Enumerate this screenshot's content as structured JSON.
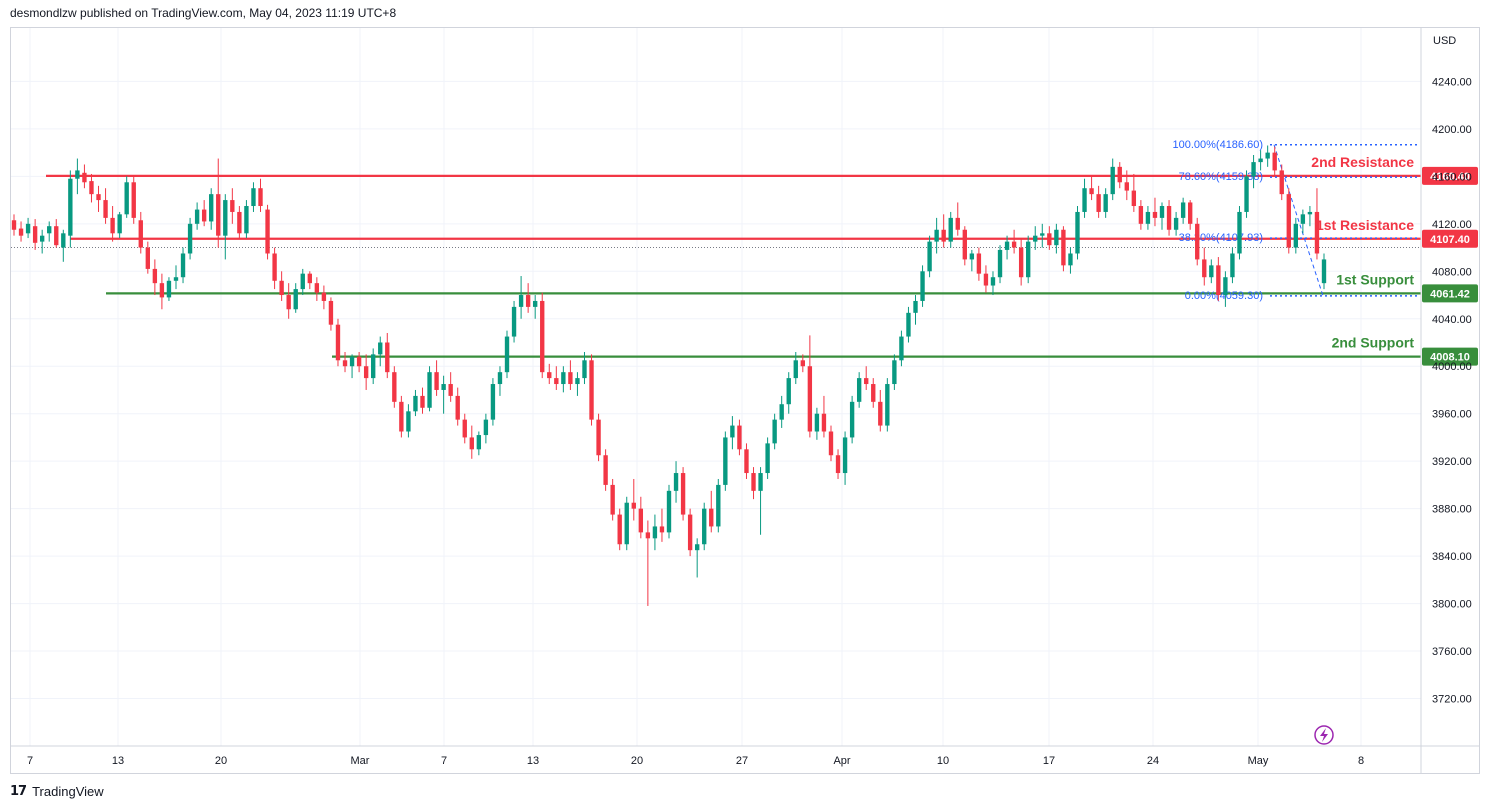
{
  "header": {
    "publisher_text": "desmondlzw published on TradingView.com, May 04, 2023 11:19 UTC+8"
  },
  "footer": {
    "logo_glyph": "17",
    "brand": "TradingView"
  },
  "colors": {
    "up": "#089981",
    "down": "#f23645",
    "resistance": "#f23645",
    "support": "#388e3c",
    "fib": "#2962ff",
    "grid": "#f0f3fa"
  },
  "icons": [
    "tradingview-logo-icon",
    "lightning-icon"
  ],
  "chart_data": {
    "type": "candlestick",
    "currency": "USD",
    "ylim": [
      3680,
      4285
    ],
    "y_ticks": [
      "4240.00",
      "4200.00",
      "4160.00",
      "4120.00",
      "4080.00",
      "4040.00",
      "4000.00",
      "3960.00",
      "3920.00",
      "3880.00",
      "3840.00",
      "3800.00",
      "3760.00",
      "3720.00"
    ],
    "x_ticks": [
      "7",
      "13",
      "20",
      "Mar",
      "7",
      "13",
      "20",
      "27",
      "Apr",
      "10",
      "17",
      "24",
      "May",
      "8"
    ],
    "horizontal_levels": [
      {
        "label": "2nd Resistance",
        "value": 4160.4,
        "value_label": "4160.40",
        "kind": "resistance"
      },
      {
        "label": "1st Resistance",
        "value": 4107.4,
        "value_label": "4107.40",
        "kind": "resistance"
      },
      {
        "label": "1st Support",
        "value": 4061.42,
        "value_label": "4061.42",
        "kind": "support"
      },
      {
        "label": "2nd Support",
        "value": 4008.1,
        "value_label": "4008.10",
        "kind": "support"
      }
    ],
    "fibonacci": [
      {
        "label": "100.00%(4186.60)",
        "value": 4186.6
      },
      {
        "label": "78.60%(4159.38)",
        "value": 4159.38
      },
      {
        "label": "38.20%(4107.93)",
        "value": 4107.93
      },
      {
        "label": "0.00%(4059.30)",
        "value": 4059.3
      }
    ],
    "last_price": 4100,
    "candles": [
      {
        "o": 4123,
        "h": 4128,
        "l": 4110,
        "c": 4115
      },
      {
        "o": 4116,
        "h": 4122,
        "l": 4105,
        "c": 4110
      },
      {
        "o": 4112,
        "h": 4125,
        "l": 4108,
        "c": 4120
      },
      {
        "o": 4118,
        "h": 4124,
        "l": 4098,
        "c": 4104
      },
      {
        "o": 4105,
        "h": 4115,
        "l": 4095,
        "c": 4110
      },
      {
        "o": 4112,
        "h": 4122,
        "l": 4105,
        "c": 4118
      },
      {
        "o": 4118,
        "h": 4124,
        "l": 4100,
        "c": 4102
      },
      {
        "o": 4100,
        "h": 4115,
        "l": 4088,
        "c": 4112
      },
      {
        "o": 4110,
        "h": 4165,
        "l": 4100,
        "c": 4158
      },
      {
        "o": 4158,
        "h": 4175,
        "l": 4145,
        "c": 4165
      },
      {
        "o": 4163,
        "h": 4170,
        "l": 4150,
        "c": 4155
      },
      {
        "o": 4156,
        "h": 4162,
        "l": 4138,
        "c": 4145
      },
      {
        "o": 4145,
        "h": 4152,
        "l": 4130,
        "c": 4140
      },
      {
        "o": 4140,
        "h": 4150,
        "l": 4120,
        "c": 4125
      },
      {
        "o": 4125,
        "h": 4135,
        "l": 4105,
        "c": 4112
      },
      {
        "o": 4112,
        "h": 4130,
        "l": 4108,
        "c": 4128
      },
      {
        "o": 4128,
        "h": 4160,
        "l": 4125,
        "c": 4155
      },
      {
        "o": 4155,
        "h": 4160,
        "l": 4120,
        "c": 4125
      },
      {
        "o": 4123,
        "h": 4130,
        "l": 4095,
        "c": 4100
      },
      {
        "o": 4100,
        "h": 4105,
        "l": 4078,
        "c": 4082
      },
      {
        "o": 4082,
        "h": 4090,
        "l": 4060,
        "c": 4070
      },
      {
        "o": 4070,
        "h": 4078,
        "l": 4048,
        "c": 4058
      },
      {
        "o": 4058,
        "h": 4075,
        "l": 4055,
        "c": 4072
      },
      {
        "o": 4072,
        "h": 4085,
        "l": 4065,
        "c": 4075
      },
      {
        "o": 4075,
        "h": 4100,
        "l": 4070,
        "c": 4095
      },
      {
        "o": 4095,
        "h": 4125,
        "l": 4090,
        "c": 4120
      },
      {
        "o": 4120,
        "h": 4138,
        "l": 4115,
        "c": 4132
      },
      {
        "o": 4132,
        "h": 4140,
        "l": 4118,
        "c": 4122
      },
      {
        "o": 4122,
        "h": 4150,
        "l": 4115,
        "c": 4145
      },
      {
        "o": 4145,
        "h": 4175,
        "l": 4100,
        "c": 4110
      },
      {
        "o": 4110,
        "h": 4145,
        "l": 4090,
        "c": 4140
      },
      {
        "o": 4140,
        "h": 4150,
        "l": 4120,
        "c": 4130
      },
      {
        "o": 4130,
        "h": 4135,
        "l": 4108,
        "c": 4112
      },
      {
        "o": 4112,
        "h": 4140,
        "l": 4108,
        "c": 4135
      },
      {
        "o": 4135,
        "h": 4155,
        "l": 4130,
        "c": 4150
      },
      {
        "o": 4150,
        "h": 4158,
        "l": 4130,
        "c": 4135
      },
      {
        "o": 4132,
        "h": 4136,
        "l": 4090,
        "c": 4095
      },
      {
        "o": 4095,
        "h": 4100,
        "l": 4065,
        "c": 4072
      },
      {
        "o": 4072,
        "h": 4080,
        "l": 4055,
        "c": 4060
      },
      {
        "o": 4060,
        "h": 4070,
        "l": 4040,
        "c": 4048
      },
      {
        "o": 4048,
        "h": 4070,
        "l": 4045,
        "c": 4065
      },
      {
        "o": 4065,
        "h": 4082,
        "l": 4060,
        "c": 4078
      },
      {
        "o": 4078,
        "h": 4080,
        "l": 4065,
        "c": 4070
      },
      {
        "o": 4070,
        "h": 4075,
        "l": 4055,
        "c": 4062
      },
      {
        "o": 4062,
        "h": 4068,
        "l": 4048,
        "c": 4055
      },
      {
        "o": 4055,
        "h": 4058,
        "l": 4030,
        "c": 4035
      },
      {
        "o": 4035,
        "h": 4040,
        "l": 4000,
        "c": 4005
      },
      {
        "o": 4005,
        "h": 4012,
        "l": 3995,
        "c": 4000
      },
      {
        "o": 4000,
        "h": 4010,
        "l": 3990,
        "c": 4008
      },
      {
        "o": 4008,
        "h": 4012,
        "l": 3995,
        "c": 4000
      },
      {
        "o": 4000,
        "h": 4010,
        "l": 3980,
        "c": 3990
      },
      {
        "o": 3990,
        "h": 4015,
        "l": 3985,
        "c": 4010
      },
      {
        "o": 4010,
        "h": 4025,
        "l": 4000,
        "c": 4020
      },
      {
        "o": 4020,
        "h": 4028,
        "l": 3990,
        "c": 3995
      },
      {
        "o": 3995,
        "h": 4000,
        "l": 3965,
        "c": 3970
      },
      {
        "o": 3970,
        "h": 3975,
        "l": 3940,
        "c": 3945
      },
      {
        "o": 3945,
        "h": 3968,
        "l": 3940,
        "c": 3962
      },
      {
        "o": 3962,
        "h": 3980,
        "l": 3958,
        "c": 3975
      },
      {
        "o": 3975,
        "h": 3982,
        "l": 3960,
        "c": 3965
      },
      {
        "o": 3965,
        "h": 4000,
        "l": 3962,
        "c": 3995
      },
      {
        "o": 3995,
        "h": 4005,
        "l": 3975,
        "c": 3980
      },
      {
        "o": 3980,
        "h": 3992,
        "l": 3960,
        "c": 3985
      },
      {
        "o": 3985,
        "h": 3995,
        "l": 3970,
        "c": 3975
      },
      {
        "o": 3975,
        "h": 3982,
        "l": 3950,
        "c": 3955
      },
      {
        "o": 3955,
        "h": 3960,
        "l": 3935,
        "c": 3940
      },
      {
        "o": 3940,
        "h": 3950,
        "l": 3922,
        "c": 3930
      },
      {
        "o": 3930,
        "h": 3945,
        "l": 3925,
        "c": 3942
      },
      {
        "o": 3942,
        "h": 3960,
        "l": 3935,
        "c": 3955
      },
      {
        "o": 3955,
        "h": 3990,
        "l": 3950,
        "c": 3985
      },
      {
        "o": 3985,
        "h": 4000,
        "l": 3975,
        "c": 3995
      },
      {
        "o": 3995,
        "h": 4030,
        "l": 3990,
        "c": 4025
      },
      {
        "o": 4025,
        "h": 4055,
        "l": 4020,
        "c": 4050
      },
      {
        "o": 4050,
        "h": 4076,
        "l": 4040,
        "c": 4060
      },
      {
        "o": 4060,
        "h": 4070,
        "l": 4045,
        "c": 4050
      },
      {
        "o": 4050,
        "h": 4060,
        "l": 4040,
        "c": 4055
      },
      {
        "o": 4055,
        "h": 4062,
        "l": 3990,
        "c": 3995
      },
      {
        "o": 3995,
        "h": 4002,
        "l": 3985,
        "c": 3990
      },
      {
        "o": 3990,
        "h": 4000,
        "l": 3980,
        "c": 3985
      },
      {
        "o": 3985,
        "h": 4000,
        "l": 3978,
        "c": 3995
      },
      {
        "o": 3995,
        "h": 4005,
        "l": 3980,
        "c": 3985
      },
      {
        "o": 3985,
        "h": 3995,
        "l": 3975,
        "c": 3990
      },
      {
        "o": 3990,
        "h": 4012,
        "l": 3985,
        "c": 4005
      },
      {
        "o": 4005,
        "h": 4010,
        "l": 3950,
        "c": 3955
      },
      {
        "o": 3955,
        "h": 3960,
        "l": 3920,
        "c": 3925
      },
      {
        "o": 3925,
        "h": 3930,
        "l": 3895,
        "c": 3900
      },
      {
        "o": 3900,
        "h": 3905,
        "l": 3870,
        "c": 3875
      },
      {
        "o": 3875,
        "h": 3880,
        "l": 3845,
        "c": 3850
      },
      {
        "o": 3850,
        "h": 3890,
        "l": 3845,
        "c": 3885
      },
      {
        "o": 3885,
        "h": 3905,
        "l": 3870,
        "c": 3880
      },
      {
        "o": 3880,
        "h": 3890,
        "l": 3855,
        "c": 3860
      },
      {
        "o": 3860,
        "h": 3870,
        "l": 3798,
        "c": 3855
      },
      {
        "o": 3855,
        "h": 3875,
        "l": 3845,
        "c": 3865
      },
      {
        "o": 3865,
        "h": 3880,
        "l": 3852,
        "c": 3860
      },
      {
        "o": 3860,
        "h": 3900,
        "l": 3855,
        "c": 3895
      },
      {
        "o": 3895,
        "h": 3920,
        "l": 3885,
        "c": 3910
      },
      {
        "o": 3910,
        "h": 3915,
        "l": 3870,
        "c": 3875
      },
      {
        "o": 3875,
        "h": 3880,
        "l": 3840,
        "c": 3845
      },
      {
        "o": 3845,
        "h": 3855,
        "l": 3822,
        "c": 3850
      },
      {
        "o": 3850,
        "h": 3885,
        "l": 3845,
        "c": 3880
      },
      {
        "o": 3880,
        "h": 3895,
        "l": 3860,
        "c": 3865
      },
      {
        "o": 3865,
        "h": 3905,
        "l": 3860,
        "c": 3900
      },
      {
        "o": 3900,
        "h": 3945,
        "l": 3895,
        "c": 3940
      },
      {
        "o": 3940,
        "h": 3958,
        "l": 3930,
        "c": 3950
      },
      {
        "o": 3950,
        "h": 3955,
        "l": 3925,
        "c": 3930
      },
      {
        "o": 3930,
        "h": 3935,
        "l": 3905,
        "c": 3910
      },
      {
        "o": 3910,
        "h": 3915,
        "l": 3888,
        "c": 3895
      },
      {
        "o": 3895,
        "h": 3915,
        "l": 3858,
        "c": 3910
      },
      {
        "o": 3910,
        "h": 3940,
        "l": 3905,
        "c": 3935
      },
      {
        "o": 3935,
        "h": 3960,
        "l": 3930,
        "c": 3955
      },
      {
        "o": 3955,
        "h": 3975,
        "l": 3948,
        "c": 3968
      },
      {
        "o": 3968,
        "h": 3995,
        "l": 3960,
        "c": 3990
      },
      {
        "o": 3990,
        "h": 4012,
        "l": 3985,
        "c": 4005
      },
      {
        "o": 4005,
        "h": 4010,
        "l": 3995,
        "c": 4000
      },
      {
        "o": 4000,
        "h": 4026,
        "l": 3940,
        "c": 3945
      },
      {
        "o": 3945,
        "h": 3965,
        "l": 3938,
        "c": 3960
      },
      {
        "o": 3960,
        "h": 3975,
        "l": 3940,
        "c": 3945
      },
      {
        "o": 3945,
        "h": 3950,
        "l": 3920,
        "c": 3925
      },
      {
        "o": 3925,
        "h": 3930,
        "l": 3905,
        "c": 3910
      },
      {
        "o": 3910,
        "h": 3945,
        "l": 3900,
        "c": 3940
      },
      {
        "o": 3940,
        "h": 3975,
        "l": 3935,
        "c": 3970
      },
      {
        "o": 3970,
        "h": 3995,
        "l": 3965,
        "c": 3990
      },
      {
        "o": 3990,
        "h": 4000,
        "l": 3980,
        "c": 3985
      },
      {
        "o": 3985,
        "h": 3990,
        "l": 3965,
        "c": 3970
      },
      {
        "o": 3970,
        "h": 3980,
        "l": 3945,
        "c": 3950
      },
      {
        "o": 3950,
        "h": 3990,
        "l": 3945,
        "c": 3985
      },
      {
        "o": 3985,
        "h": 4010,
        "l": 3980,
        "c": 4005
      },
      {
        "o": 4005,
        "h": 4030,
        "l": 4000,
        "c": 4025
      },
      {
        "o": 4025,
        "h": 4050,
        "l": 4020,
        "c": 4045
      },
      {
        "o": 4045,
        "h": 4060,
        "l": 4035,
        "c": 4055
      },
      {
        "o": 4055,
        "h": 4085,
        "l": 4050,
        "c": 4080
      },
      {
        "o": 4080,
        "h": 4110,
        "l": 4075,
        "c": 4105
      },
      {
        "o": 4105,
        "h": 4125,
        "l": 4095,
        "c": 4115
      },
      {
        "o": 4115,
        "h": 4128,
        "l": 4100,
        "c": 4105
      },
      {
        "o": 4105,
        "h": 4130,
        "l": 4100,
        "c": 4125
      },
      {
        "o": 4125,
        "h": 4138,
        "l": 4110,
        "c": 4115
      },
      {
        "o": 4115,
        "h": 4118,
        "l": 4085,
        "c": 4090
      },
      {
        "o": 4090,
        "h": 4098,
        "l": 4080,
        "c": 4095
      },
      {
        "o": 4095,
        "h": 4100,
        "l": 4072,
        "c": 4078
      },
      {
        "o": 4078,
        "h": 4085,
        "l": 4062,
        "c": 4068
      },
      {
        "o": 4068,
        "h": 4080,
        "l": 4060,
        "c": 4075
      },
      {
        "o": 4075,
        "h": 4102,
        "l": 4070,
        "c": 4098
      },
      {
        "o": 4098,
        "h": 4110,
        "l": 4090,
        "c": 4105
      },
      {
        "o": 4105,
        "h": 4115,
        "l": 4095,
        "c": 4100
      },
      {
        "o": 4100,
        "h": 4108,
        "l": 4068,
        "c": 4075
      },
      {
        "o": 4075,
        "h": 4110,
        "l": 4070,
        "c": 4105
      },
      {
        "o": 4105,
        "h": 4118,
        "l": 4098,
        "c": 4110
      },
      {
        "o": 4110,
        "h": 4120,
        "l": 4100,
        "c": 4112
      },
      {
        "o": 4112,
        "h": 4118,
        "l": 4098,
        "c": 4102
      },
      {
        "o": 4102,
        "h": 4120,
        "l": 4095,
        "c": 4115
      },
      {
        "o": 4115,
        "h": 4118,
        "l": 4080,
        "c": 4085
      },
      {
        "o": 4085,
        "h": 4100,
        "l": 4078,
        "c": 4095
      },
      {
        "o": 4095,
        "h": 4135,
        "l": 4090,
        "c": 4130
      },
      {
        "o": 4130,
        "h": 4158,
        "l": 4125,
        "c": 4150
      },
      {
        "o": 4150,
        "h": 4160,
        "l": 4140,
        "c": 4145
      },
      {
        "o": 4145,
        "h": 4152,
        "l": 4125,
        "c": 4130
      },
      {
        "o": 4130,
        "h": 4150,
        "l": 4125,
        "c": 4145
      },
      {
        "o": 4145,
        "h": 4175,
        "l": 4140,
        "c": 4168
      },
      {
        "o": 4168,
        "h": 4172,
        "l": 4150,
        "c": 4155
      },
      {
        "o": 4155,
        "h": 4165,
        "l": 4140,
        "c": 4148
      },
      {
        "o": 4148,
        "h": 4162,
        "l": 4130,
        "c": 4135
      },
      {
        "o": 4135,
        "h": 4140,
        "l": 4115,
        "c": 4120
      },
      {
        "o": 4120,
        "h": 4135,
        "l": 4115,
        "c": 4130
      },
      {
        "o": 4130,
        "h": 4142,
        "l": 4118,
        "c": 4125
      },
      {
        "o": 4125,
        "h": 4138,
        "l": 4115,
        "c": 4135
      },
      {
        "o": 4135,
        "h": 4140,
        "l": 4110,
        "c": 4115
      },
      {
        "o": 4115,
        "h": 4130,
        "l": 4110,
        "c": 4125
      },
      {
        "o": 4125,
        "h": 4142,
        "l": 4120,
        "c": 4138
      },
      {
        "o": 4138,
        "h": 4140,
        "l": 4115,
        "c": 4120
      },
      {
        "o": 4120,
        "h": 4125,
        "l": 4085,
        "c": 4090
      },
      {
        "o": 4090,
        "h": 4100,
        "l": 4068,
        "c": 4075
      },
      {
        "o": 4075,
        "h": 4090,
        "l": 4070,
        "c": 4085
      },
      {
        "o": 4085,
        "h": 4092,
        "l": 4055,
        "c": 4060
      },
      {
        "o": 4060,
        "h": 4080,
        "l": 4050,
        "c": 4075
      },
      {
        "o": 4075,
        "h": 4100,
        "l": 4070,
        "c": 4095
      },
      {
        "o": 4095,
        "h": 4135,
        "l": 4090,
        "c": 4130
      },
      {
        "o": 4130,
        "h": 4165,
        "l": 4125,
        "c": 4160
      },
      {
        "o": 4160,
        "h": 4178,
        "l": 4150,
        "c": 4172
      },
      {
        "o": 4172,
        "h": 4182,
        "l": 4165,
        "c": 4175
      },
      {
        "o": 4175,
        "h": 4186,
        "l": 4168,
        "c": 4180
      },
      {
        "o": 4180,
        "h": 4185,
        "l": 4160,
        "c": 4165
      },
      {
        "o": 4165,
        "h": 4170,
        "l": 4140,
        "c": 4145
      },
      {
        "o": 4145,
        "h": 4150,
        "l": 4095,
        "c": 4100
      },
      {
        "o": 4100,
        "h": 4125,
        "l": 4095,
        "c": 4120
      },
      {
        "o": 4120,
        "h": 4132,
        "l": 4112,
        "c": 4128
      },
      {
        "o": 4128,
        "h": 4135,
        "l": 4118,
        "c": 4130
      },
      {
        "o": 4130,
        "h": 4150,
        "l": 4090,
        "c": 4095
      },
      {
        "o": 4070,
        "h": 4095,
        "l": 4065,
        "c": 4090
      }
    ]
  }
}
